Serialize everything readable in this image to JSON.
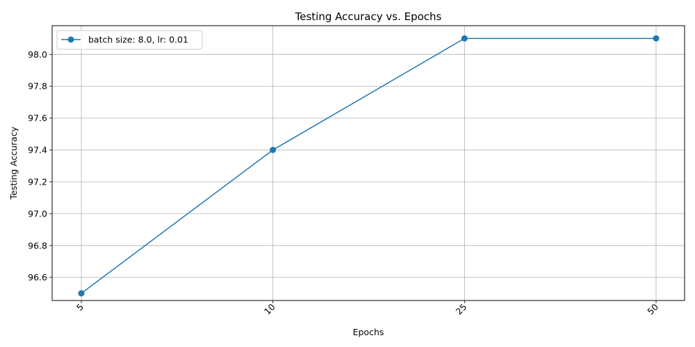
{
  "chart_data": {
    "type": "line",
    "title": "Testing Accuracy vs. Epochs",
    "xlabel": "Epochs",
    "ylabel": "Testing Accuracy",
    "categories": [
      "5",
      "10",
      "25",
      "50"
    ],
    "series": [
      {
        "name": "batch size: 8.0, lr: 0.01",
        "values": [
          96.5,
          97.4,
          98.1,
          98.1
        ],
        "color": "#1f77b4",
        "marker": "circle"
      }
    ],
    "y_ticks": [
      "96.6",
      "96.8",
      "97.0",
      "97.2",
      "97.4",
      "97.6",
      "97.8",
      "98.0"
    ],
    "ylim": [
      96.455,
      98.18
    ],
    "grid": true,
    "legend_position": "top-left",
    "x_tick_rotation_deg": 45
  }
}
